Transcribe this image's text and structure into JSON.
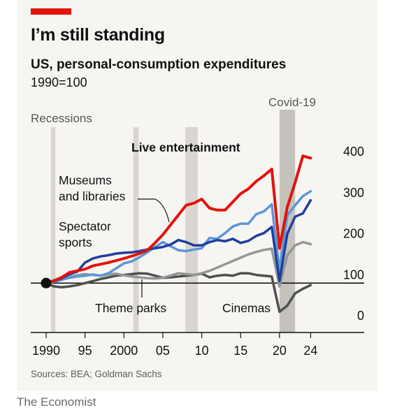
{
  "header": {
    "title": "I’m still standing",
    "subtitle": "US, personal-consumption expenditures",
    "note": "1990=100"
  },
  "source": "Sources: BEA; Goldman Sachs",
  "footer": "The Economist",
  "colors": {
    "background": "#f6f5f2",
    "accent": "#e3120b",
    "recession_shade": "#d9d6cf",
    "covid_shade": "#c4c2bb"
  },
  "chart_data": {
    "type": "line",
    "xlim": [
      1989,
      2026
    ],
    "ylim": [
      0,
      420
    ],
    "x_ticks": [
      1990,
      1995,
      2000,
      2005,
      2010,
      2015,
      2020,
      2024
    ],
    "x_tick_labels": [
      "1990",
      "95",
      "2000",
      "05",
      "10",
      "15",
      "20",
      "24"
    ],
    "y_ticks": [
      0,
      100,
      200,
      300,
      400
    ],
    "y_tick_labels": [
      "0",
      "100",
      "200",
      "300",
      "400"
    ],
    "recessions_label": "Recessions",
    "recessions": [
      [
        1990.6,
        1991.2
      ],
      [
        2001.2,
        2001.9
      ],
      [
        2007.9,
        2009.5
      ]
    ],
    "covid": {
      "label": "Covid-19",
      "range": [
        2020,
        2022
      ]
    },
    "grid": false,
    "baseline": 100,
    "series": [
      {
        "name": "Live entertainment",
        "color": "#e3120b",
        "width": 4,
        "x": [
          1990,
          1991,
          1992,
          1993,
          1994,
          1995,
          1996,
          1997,
          1998,
          1999,
          2000,
          2001,
          2002,
          2003,
          2004,
          2005,
          2006,
          2007,
          2008,
          2009,
          2010,
          2011,
          2012,
          2013,
          2014,
          2015,
          2016,
          2017,
          2018,
          2019,
          2020,
          2021,
          2022,
          2023,
          2024
        ],
        "y": [
          100,
          106,
          114,
          126,
          130,
          134,
          142,
          146,
          150,
          155,
          160,
          166,
          172,
          180,
          198,
          218,
          242,
          266,
          290,
          295,
          305,
          283,
          278,
          278,
          298,
          318,
          330,
          348,
          362,
          378,
          185,
          285,
          345,
          410,
          405
        ]
      },
      {
        "name": "Museums and libraries",
        "color": "#5b96d8",
        "width": 3.5,
        "x": [
          1990,
          1991,
          1992,
          1993,
          1994,
          1995,
          1996,
          1997,
          1998,
          1999,
          2000,
          2001,
          2002,
          2003,
          2004,
          2005,
          2006,
          2007,
          2008,
          2009,
          2010,
          2011,
          2012,
          2013,
          2014,
          2015,
          2016,
          2017,
          2018,
          2019,
          2020,
          2021,
          2022,
          2023,
          2024
        ],
        "y": [
          100,
          103,
          108,
          113,
          116,
          118,
          121,
          118,
          124,
          136,
          148,
          153,
          163,
          175,
          188,
          200,
          190,
          180,
          178,
          182,
          185,
          210,
          208,
          222,
          238,
          245,
          245,
          268,
          275,
          292,
          130,
          265,
          290,
          312,
          324
        ]
      },
      {
        "name": "Spectator sports",
        "color": "#1f3e9c",
        "width": 3.5,
        "x": [
          1990,
          1991,
          1992,
          1993,
          1994,
          1995,
          1996,
          1997,
          1998,
          1999,
          2000,
          2001,
          2002,
          2003,
          2004,
          2005,
          2006,
          2007,
          2008,
          2009,
          2010,
          2011,
          2012,
          2013,
          2014,
          2015,
          2016,
          2017,
          2018,
          2019,
          2020,
          2021,
          2022,
          2023,
          2024
        ],
        "y": [
          100,
          105,
          112,
          122,
          128,
          150,
          160,
          165,
          168,
          172,
          174,
          175,
          178,
          182,
          185,
          188,
          194,
          205,
          200,
          192,
          192,
          200,
          205,
          202,
          208,
          198,
          203,
          215,
          222,
          237,
          105,
          220,
          262,
          270,
          302
        ]
      },
      {
        "name": "Theme parks",
        "color": "#969696",
        "width": 3.5,
        "x": [
          1990,
          1991,
          1992,
          1993,
          1994,
          1995,
          1996,
          1997,
          1998,
          1999,
          2000,
          2001,
          2002,
          2003,
          2004,
          2005,
          2006,
          2007,
          2008,
          2009,
          2010,
          2011,
          2012,
          2013,
          2014,
          2015,
          2016,
          2017,
          2018,
          2019,
          2020,
          2021,
          2022,
          2023,
          2024
        ],
        "y": [
          100,
          104,
          110,
          116,
          119,
          122,
          120,
          118,
          121,
          123,
          119,
          116,
          114,
          112,
          111,
          113,
          118,
          124,
          122,
          120,
          124,
          130,
          138,
          146,
          154,
          162,
          170,
          176,
          181,
          184,
          92,
          168,
          192,
          200,
          195
        ]
      },
      {
        "name": "Cinemas",
        "color": "#4f4f4f",
        "width": 3.5,
        "x": [
          1990,
          1991,
          1992,
          1993,
          1994,
          1995,
          1996,
          1997,
          1998,
          1999,
          2000,
          2001,
          2002,
          2003,
          2004,
          2005,
          2006,
          2007,
          2008,
          2009,
          2010,
          2011,
          2012,
          2013,
          2014,
          2015,
          2016,
          2017,
          2018,
          2019,
          2020,
          2021,
          2022,
          2023,
          2024
        ],
        "y": [
          100,
          92,
          90,
          92,
          95,
          100,
          105,
          110,
          114,
          118,
          120,
          122,
          124,
          123,
          118,
          113,
          114,
          116,
          118,
          120,
          123,
          114,
          118,
          120,
          118,
          124,
          124,
          120,
          118,
          116,
          30,
          45,
          75,
          86,
          95
        ]
      }
    ],
    "annotations": [
      {
        "text": "Live entertainment",
        "bold": true
      },
      {
        "text": "Museums",
        "bold": false
      },
      {
        "text": "and libraries",
        "bold": false
      },
      {
        "text": "Spectator",
        "bold": false
      },
      {
        "text": "sports",
        "bold": false
      },
      {
        "text": "Theme parks",
        "bold": false
      },
      {
        "text": "Cinemas",
        "bold": false
      }
    ]
  }
}
